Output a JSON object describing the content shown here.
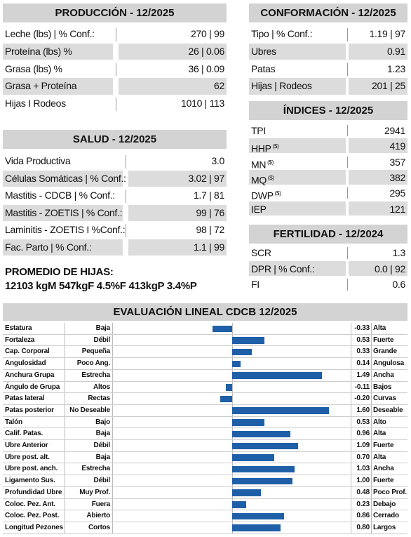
{
  "produccion": {
    "title": "PRODUCCIÓN - 12/2025",
    "rows": [
      {
        "label": "Leche (lbs) | % Conf.:",
        "value": "270 | 99"
      },
      {
        "label": "Proteína (lbs) %",
        "value": "26 | 0.06"
      },
      {
        "label": "Grasa (lbs) %",
        "value": "36 | 0.09"
      },
      {
        "label": "Grasa + Proteína",
        "value": "62"
      },
      {
        "label": "Hijas I Rodeos",
        "value": "1010 | 113"
      }
    ]
  },
  "salud": {
    "title": "SALUD - 12/2025",
    "rows": [
      {
        "label": "Vida Productiva",
        "value": "3.0"
      },
      {
        "label": "Células Somáticas | % Conf.:",
        "value": "3.02 | 97"
      },
      {
        "label": "Mastitis - CDCB | % Conf.:",
        "value": "1.7 | 81"
      },
      {
        "label": "Mastitis - ZOETIS | % Conf.:",
        "value": "99 | 76"
      },
      {
        "label": "Laminitis - ZOETIS I %Conf.:",
        "value": "98 | 72"
      },
      {
        "label": "Fac. Parto | % Conf.:",
        "value": "1.1 | 99"
      }
    ]
  },
  "conformacion": {
    "title": "CONFORMACIÓN - 12/2025",
    "rows": [
      {
        "label": "Tipo | % Conf.:",
        "value": "1.19 | 97"
      },
      {
        "label": "Ubres",
        "value": "0.91"
      },
      {
        "label": "Patas",
        "value": "1.23"
      },
      {
        "label": "Hijas | Rodeos",
        "value": "201 | 25"
      }
    ]
  },
  "indices": {
    "title": "ÍNDICES - 12/2025",
    "rows": [
      {
        "label": "TPI",
        "value": "2941"
      },
      {
        "label": "HHP",
        "sup": "($)",
        "value": "419"
      },
      {
        "label": "MN",
        "sup": "($)",
        "value": "357"
      },
      {
        "label": "MQ",
        "sup": "($)",
        "value": "382"
      },
      {
        "label": "DWP",
        "sup": "($)",
        "value": "295"
      },
      {
        "label": "IEP",
        "value": "121"
      }
    ]
  },
  "fertilidad": {
    "title": "FERTILIDAD - 12/2024",
    "rows": [
      {
        "label": "SCR",
        "value": "1.3"
      },
      {
        "label": "DPR | % Conf.:",
        "value": "0.0 | 92"
      },
      {
        "label": "FI",
        "value": "0.6"
      }
    ]
  },
  "promedio": {
    "title": "PROMEDIO DE HIJAS:",
    "text": "12103 kgM 547kgF 4.5%F 413kgP 3.4%P"
  },
  "chart_data": {
    "type": "bar",
    "title": "EVALUACIÓN LINEAL CDCB 12/2025",
    "color": "#1f5fa8",
    "categories": [
      "Estatura",
      "Fortaleza",
      "Cap. Corporal",
      "Angulosidad",
      "Anchura Grupa",
      "Ángulo de Grupa",
      "Patas lateral",
      "Patas posterior",
      "Talón",
      "Calif. Patas.",
      "Ubre Anterior",
      "Ubre post. alt.",
      "Ubre post. anch.",
      "Ligamento Sus.",
      "Profundidad Ubre",
      "Coloc. Pez. Ant.",
      "Coloc. Pez. Post.",
      "Longitud Pezones"
    ],
    "low_labels": [
      "Baja",
      "Débil",
      "Pequeña",
      "Poco Ang.",
      "Estrecha",
      "Altos",
      "Rectas",
      "No Deseable",
      "Bajo",
      "Baja",
      "Débil",
      "Baja",
      "Estrecha",
      "Débil",
      "Muy Prof.",
      "Fuera",
      "Abierto",
      "Cortos"
    ],
    "high_labels": [
      "Alta",
      "Fuerte",
      "Grande",
      "Angulosa",
      "Ancha",
      "Bajos",
      "Curvas",
      "Deseable",
      "Alto",
      "Alta",
      "Fuerte",
      "Alta",
      "Ancha",
      "Fuerte",
      "Poco Prof.",
      "Debajo",
      "Cerrado",
      "Largos"
    ],
    "values": [
      -0.33,
      0.53,
      0.33,
      0.14,
      1.49,
      -0.11,
      -0.2,
      1.6,
      0.53,
      0.96,
      1.09,
      0.7,
      1.03,
      1,
      0.48,
      0.23,
      0.86,
      0.8
    ],
    "value_labels": [
      "-0.33",
      "0.53",
      "0.33",
      "0.14",
      "1.49",
      "-0.11",
      "-0.20",
      "1.60",
      "0.53",
      "0.96",
      "1.09",
      "0.70",
      "1.03",
      "1.00",
      "0.48",
      "0.23",
      "0.86",
      "0.80"
    ]
  }
}
